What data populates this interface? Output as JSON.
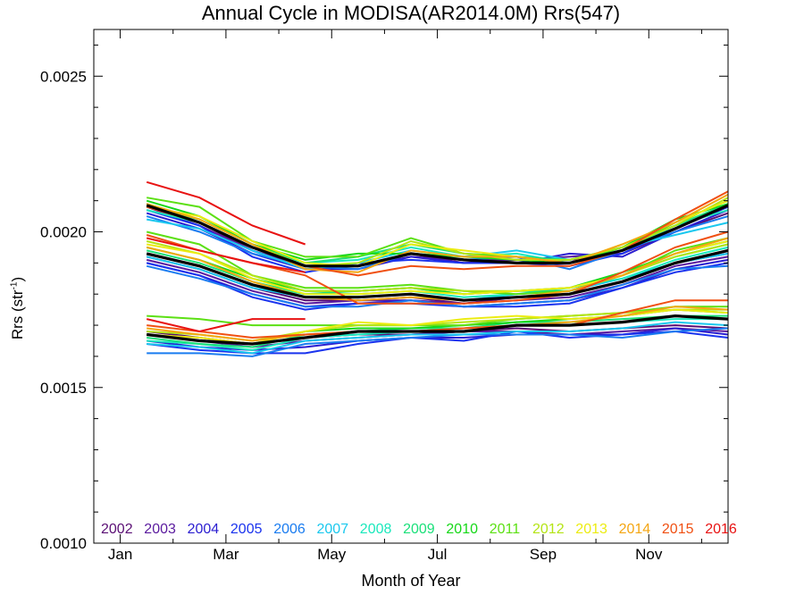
{
  "chart_data": {
    "type": "line",
    "title": "Annual Cycle in MODISA(AR2014.0M) Rrs(547)",
    "xlabel": "Month of Year",
    "ylabel": "Rrs (str",
    "ylabel_sup": "-1",
    "ylabel_close": ")",
    "ylim": [
      0.001,
      0.00265
    ],
    "xlim": [
      0.5,
      12.5
    ],
    "y_ticks": [
      0.001,
      0.0015,
      0.002,
      0.0025
    ],
    "y_tick_labels": [
      "0.0010",
      "0.0015",
      "0.0020",
      "0.0025"
    ],
    "x_ticks": [
      1,
      3,
      5,
      7,
      9,
      11
    ],
    "x_tick_labels": [
      "Jan",
      "Mar",
      "May",
      "Jul",
      "Sep",
      "Nov"
    ],
    "grid": false,
    "legend_placement": "bottom-inside",
    "legend": [
      {
        "label": "2002",
        "color": "#5a0e74"
      },
      {
        "label": "2003",
        "color": "#5a1a9e"
      },
      {
        "label": "2004",
        "color": "#2a1dd0"
      },
      {
        "label": "2005",
        "color": "#1a33ee"
      },
      {
        "label": "2006",
        "color": "#1a7cf0"
      },
      {
        "label": "2007",
        "color": "#1ac8ee"
      },
      {
        "label": "2008",
        "color": "#1ae8bc"
      },
      {
        "label": "2009",
        "color": "#1ae07a"
      },
      {
        "label": "2010",
        "color": "#16d818"
      },
      {
        "label": "2011",
        "color": "#5ce014"
      },
      {
        "label": "2012",
        "color": "#b4e414"
      },
      {
        "label": "2013",
        "color": "#ecec12"
      },
      {
        "label": "2014",
        "color": "#f4a612"
      },
      {
        "label": "2015",
        "color": "#f05012"
      },
      {
        "label": "2016",
        "color": "#e81212"
      }
    ],
    "x": [
      1.5,
      2.5,
      3.5,
      4.5,
      5.5,
      6.5,
      7.5,
      8.5,
      9.5,
      10.5,
      11.5,
      12.5
    ],
    "groups": [
      {
        "mean": [
          0.002085,
          0.00203,
          0.00195,
          0.00189,
          0.00189,
          0.00193,
          0.00191,
          0.0019,
          0.0019,
          0.00194,
          0.00201,
          0.002085
        ],
        "series": [
          {
            "year": "2002",
            "values": [
              0.00209,
              0.00203,
              0.00194,
              0.00188,
              0.00189,
              0.00193,
              0.0019,
              0.00191,
              0.00191,
              0.00193,
              0.002,
              0.00206
            ]
          },
          {
            "year": "2003",
            "values": [
              0.00208,
              0.00202,
              0.00194,
              0.00189,
              0.00189,
              0.00192,
              0.00191,
              0.00191,
              0.00192,
              0.00193,
              0.00201,
              0.00208
            ]
          },
          {
            "year": "2004",
            "values": [
              0.00206,
              0.00201,
              0.00193,
              0.00188,
              0.00188,
              0.00192,
              0.0019,
              0.0019,
              0.00193,
              0.00192,
              0.002,
              0.00207
            ]
          },
          {
            "year": "2005",
            "values": [
              0.00207,
              0.00202,
              0.00192,
              0.00187,
              0.0019,
              0.00191,
              0.0019,
              0.0019,
              0.00189,
              0.00193,
              0.00201,
              0.00208
            ]
          },
          {
            "year": "2006",
            "values": [
              0.00205,
              0.002,
              0.00193,
              0.00189,
              0.00188,
              0.00193,
              0.00191,
              0.00192,
              0.00188,
              0.00194,
              0.002,
              0.00205
            ]
          },
          {
            "year": "2007",
            "values": [
              0.00204,
              0.00201,
              0.00194,
              0.00188,
              0.0019,
              0.00194,
              0.00192,
              0.00194,
              0.00191,
              0.00195,
              0.00199,
              0.00203
            ]
          },
          {
            "year": "2008",
            "values": [
              0.00207,
              0.00203,
              0.00195,
              0.0019,
              0.00191,
              0.00195,
              0.00192,
              0.00193,
              0.0019,
              0.00194,
              0.00202,
              0.00207
            ]
          },
          {
            "year": "2009",
            "values": [
              0.00208,
              0.00204,
              0.00196,
              0.0019,
              0.00192,
              0.00196,
              0.00193,
              0.00192,
              0.00191,
              0.00195,
              0.00202,
              0.00209
            ]
          },
          {
            "year": "2010",
            "values": [
              0.0021,
              0.00205,
              0.00196,
              0.00191,
              0.00193,
              0.00193,
              0.00192,
              0.00191,
              0.0019,
              0.00195,
              0.00204,
              0.00209
            ]
          },
          {
            "year": "2011",
            "values": [
              0.00211,
              0.00208,
              0.00197,
              0.00192,
              0.00192,
              0.00198,
              0.00193,
              0.00192,
              0.0019,
              0.00194,
              0.00203,
              0.0021
            ]
          },
          {
            "year": "2012",
            "values": [
              0.00209,
              0.00204,
              0.00196,
              0.00189,
              0.0019,
              0.00197,
              0.00193,
              0.00191,
              0.00191,
              0.00195,
              0.00202,
              0.00211
            ]
          },
          {
            "year": "2013",
            "values": [
              0.00208,
              0.00205,
              0.00197,
              0.0019,
              0.00189,
              0.00196,
              0.00194,
              0.00192,
              0.0019,
              0.00196,
              0.00203,
              0.0021
            ]
          },
          {
            "year": "2014",
            "values": [
              0.00209,
              0.00204,
              0.00196,
              0.00188,
              0.00187,
              0.00194,
              0.00192,
              0.00192,
              0.0019,
              0.00196,
              0.00203,
              0.00212
            ]
          },
          {
            "year": "2015",
            "values": [
              0.00208,
              0.00203,
              0.00195,
              0.00189,
              0.00186,
              0.00189,
              0.00188,
              0.00189,
              0.00189,
              0.00194,
              0.00204,
              0.00213
            ]
          },
          {
            "year": "2016",
            "values": [
              0.00216,
              0.00211,
              0.00202,
              0.00196,
              null,
              null,
              null,
              null,
              null,
              null,
              null,
              null
            ]
          }
        ]
      },
      {
        "mean": [
          0.00193,
          0.00189,
          0.00183,
          0.00179,
          0.00179,
          0.0018,
          0.00178,
          0.00179,
          0.0018,
          0.00184,
          0.0019,
          0.00194
        ],
        "series": [
          {
            "year": "2002",
            "values": [
              0.00192,
              0.00188,
              0.00182,
              0.00178,
              0.00178,
              0.00179,
              0.00177,
              0.00179,
              0.0018,
              0.00184,
              0.0019,
              0.00193
            ]
          },
          {
            "year": "2003",
            "values": [
              0.00191,
              0.00187,
              0.00181,
              0.00177,
              0.00178,
              0.00178,
              0.00177,
              0.00178,
              0.00179,
              0.00183,
              0.00189,
              0.00192
            ]
          },
          {
            "year": "2004",
            "values": [
              0.0019,
              0.00186,
              0.0018,
              0.00176,
              0.00177,
              0.00178,
              0.00176,
              0.00177,
              0.00178,
              0.00182,
              0.00188,
              0.00191
            ]
          },
          {
            "year": "2005",
            "values": [
              0.0019,
              0.00186,
              0.00179,
              0.00175,
              0.00177,
              0.00177,
              0.00176,
              0.00176,
              0.00177,
              0.00182,
              0.00187,
              0.0019
            ]
          },
          {
            "year": "2006",
            "values": [
              0.00189,
              0.00185,
              0.0018,
              0.00176,
              0.00176,
              0.00178,
              0.00176,
              0.00177,
              0.00178,
              0.00183,
              0.00188,
              0.00189
            ]
          },
          {
            "year": "2007",
            "values": [
              0.00192,
              0.00188,
              0.00182,
              0.00179,
              0.00179,
              0.0018,
              0.00178,
              0.0018,
              0.00181,
              0.00185,
              0.0019,
              0.00193
            ]
          },
          {
            "year": "2008",
            "values": [
              0.00193,
              0.00189,
              0.00183,
              0.0018,
              0.0018,
              0.00181,
              0.00179,
              0.0018,
              0.00182,
              0.00185,
              0.00191,
              0.00195
            ]
          },
          {
            "year": "2009",
            "values": [
              0.00194,
              0.0019,
              0.00184,
              0.0018,
              0.00181,
              0.00182,
              0.0018,
              0.00181,
              0.00181,
              0.00186,
              0.00192,
              0.00196
            ]
          },
          {
            "year": "2010",
            "values": [
              0.00195,
              0.00191,
              0.00185,
              0.00181,
              0.00181,
              0.00182,
              0.0018,
              0.00181,
              0.00182,
              0.00187,
              0.00193,
              0.00197
            ]
          },
          {
            "year": "2011",
            "values": [
              0.002,
              0.00196,
              0.00186,
              0.00182,
              0.00182,
              0.00183,
              0.00181,
              0.0018,
              0.00181,
              0.00186,
              0.00194,
              0.00198
            ]
          },
          {
            "year": "2012",
            "values": [
              0.00197,
              0.00193,
              0.00186,
              0.00181,
              0.00181,
              0.00182,
              0.00181,
              0.00181,
              0.00182,
              0.00186,
              0.00192,
              0.00196
            ]
          },
          {
            "year": "2013",
            "values": [
              0.00196,
              0.00193,
              0.00185,
              0.0018,
              0.0018,
              0.00181,
              0.0018,
              0.00181,
              0.00182,
              0.00186,
              0.00193,
              0.00197
            ]
          },
          {
            "year": "2014",
            "values": [
              0.00195,
              0.00191,
              0.00184,
              0.00179,
              0.00178,
              0.00179,
              0.00178,
              0.00179,
              0.00181,
              0.00186,
              0.00193,
              0.00198
            ]
          },
          {
            "year": "2015",
            "values": [
              0.00199,
              0.00194,
              0.0019,
              0.00186,
              0.00177,
              0.00177,
              0.00177,
              0.00178,
              0.0018,
              0.00187,
              0.00195,
              0.002
            ]
          },
          {
            "year": "2016",
            "values": [
              0.00198,
              0.00194,
              0.0019,
              0.00187,
              null,
              null,
              null,
              null,
              null,
              null,
              null,
              null
            ]
          }
        ]
      },
      {
        "mean": [
          0.00167,
          0.00165,
          0.00164,
          0.00166,
          0.00168,
          0.00168,
          0.00168,
          0.0017,
          0.0017,
          0.00171,
          0.00173,
          0.00172
        ],
        "series": [
          {
            "year": "2002",
            "values": [
              0.00168,
              0.00166,
              0.00164,
              0.00166,
              0.00167,
              0.00167,
              0.00168,
              0.00169,
              0.00168,
              0.00169,
              0.0017,
              0.00169
            ]
          },
          {
            "year": "2003",
            "values": [
              0.00167,
              0.00165,
              0.00163,
              0.00165,
              0.00166,
              0.00167,
              0.00168,
              0.00168,
              0.00167,
              0.00168,
              0.00169,
              0.00168
            ]
          },
          {
            "year": "2004",
            "values": [
              0.00165,
              0.00163,
              0.00162,
              0.00163,
              0.00165,
              0.00166,
              0.00166,
              0.00167,
              0.00167,
              0.00167,
              0.00169,
              0.00167
            ]
          },
          {
            "year": "2005",
            "values": [
              0.00164,
              0.00162,
              0.00161,
              0.00161,
              0.00164,
              0.00166,
              0.00165,
              0.00168,
              0.00166,
              0.00167,
              0.00168,
              0.00166
            ]
          },
          {
            "year": "2006",
            "values": [
              0.00161,
              0.00161,
              0.0016,
              0.00164,
              0.00165,
              0.00166,
              0.00167,
              0.00167,
              0.00167,
              0.00166,
              0.00168,
              0.00169
            ]
          },
          {
            "year": "2007",
            "values": [
              0.00164,
              0.00163,
              0.00161,
              0.00165,
              0.00166,
              0.00167,
              0.00167,
              0.00168,
              0.00168,
              0.00169,
              0.00171,
              0.0017
            ]
          },
          {
            "year": "2008",
            "values": [
              0.00165,
              0.00164,
              0.00162,
              0.00166,
              0.00167,
              0.00168,
              0.00168,
              0.0017,
              0.0017,
              0.00171,
              0.00172,
              0.00172
            ]
          },
          {
            "year": "2009",
            "values": [
              0.00166,
              0.00164,
              0.00163,
              0.00167,
              0.00168,
              0.00169,
              0.00169,
              0.00171,
              0.00171,
              0.00172,
              0.00173,
              0.00173
            ]
          },
          {
            "year": "2010",
            "values": [
              0.00167,
              0.00165,
              0.00164,
              0.00168,
              0.00169,
              0.00169,
              0.0017,
              0.00171,
              0.00172,
              0.00173,
              0.00175,
              0.00174
            ]
          },
          {
            "year": "2011",
            "values": [
              0.00173,
              0.00172,
              0.0017,
              0.0017,
              0.0017,
              0.0017,
              0.0017,
              0.00172,
              0.00173,
              0.00174,
              0.00176,
              0.00176
            ]
          },
          {
            "year": "2012",
            "values": [
              0.00168,
              0.00167,
              0.00165,
              0.00168,
              0.0017,
              0.0017,
              0.00171,
              0.00172,
              0.00173,
              0.00174,
              0.00175,
              0.00175
            ]
          },
          {
            "year": "2013",
            "values": [
              0.00167,
              0.00166,
              0.00164,
              0.00168,
              0.00171,
              0.0017,
              0.00172,
              0.00173,
              0.00172,
              0.00173,
              0.00175,
              0.00174
            ]
          },
          {
            "year": "2014",
            "values": [
              0.00169,
              0.00167,
              0.00165,
              0.00167,
              0.00168,
              0.00168,
              0.00169,
              0.0017,
              0.00171,
              0.00173,
              0.00176,
              0.00175
            ]
          },
          {
            "year": "2015",
            "values": [
              0.0017,
              0.00168,
              0.00166,
              0.00167,
              0.00168,
              0.00168,
              0.00169,
              0.0017,
              0.0017,
              0.00174,
              0.00178,
              0.00178
            ]
          },
          {
            "year": "2016",
            "values": [
              0.00172,
              0.00168,
              0.00172,
              0.00172,
              null,
              null,
              null,
              null,
              null,
              null,
              null,
              null
            ]
          }
        ]
      }
    ]
  }
}
